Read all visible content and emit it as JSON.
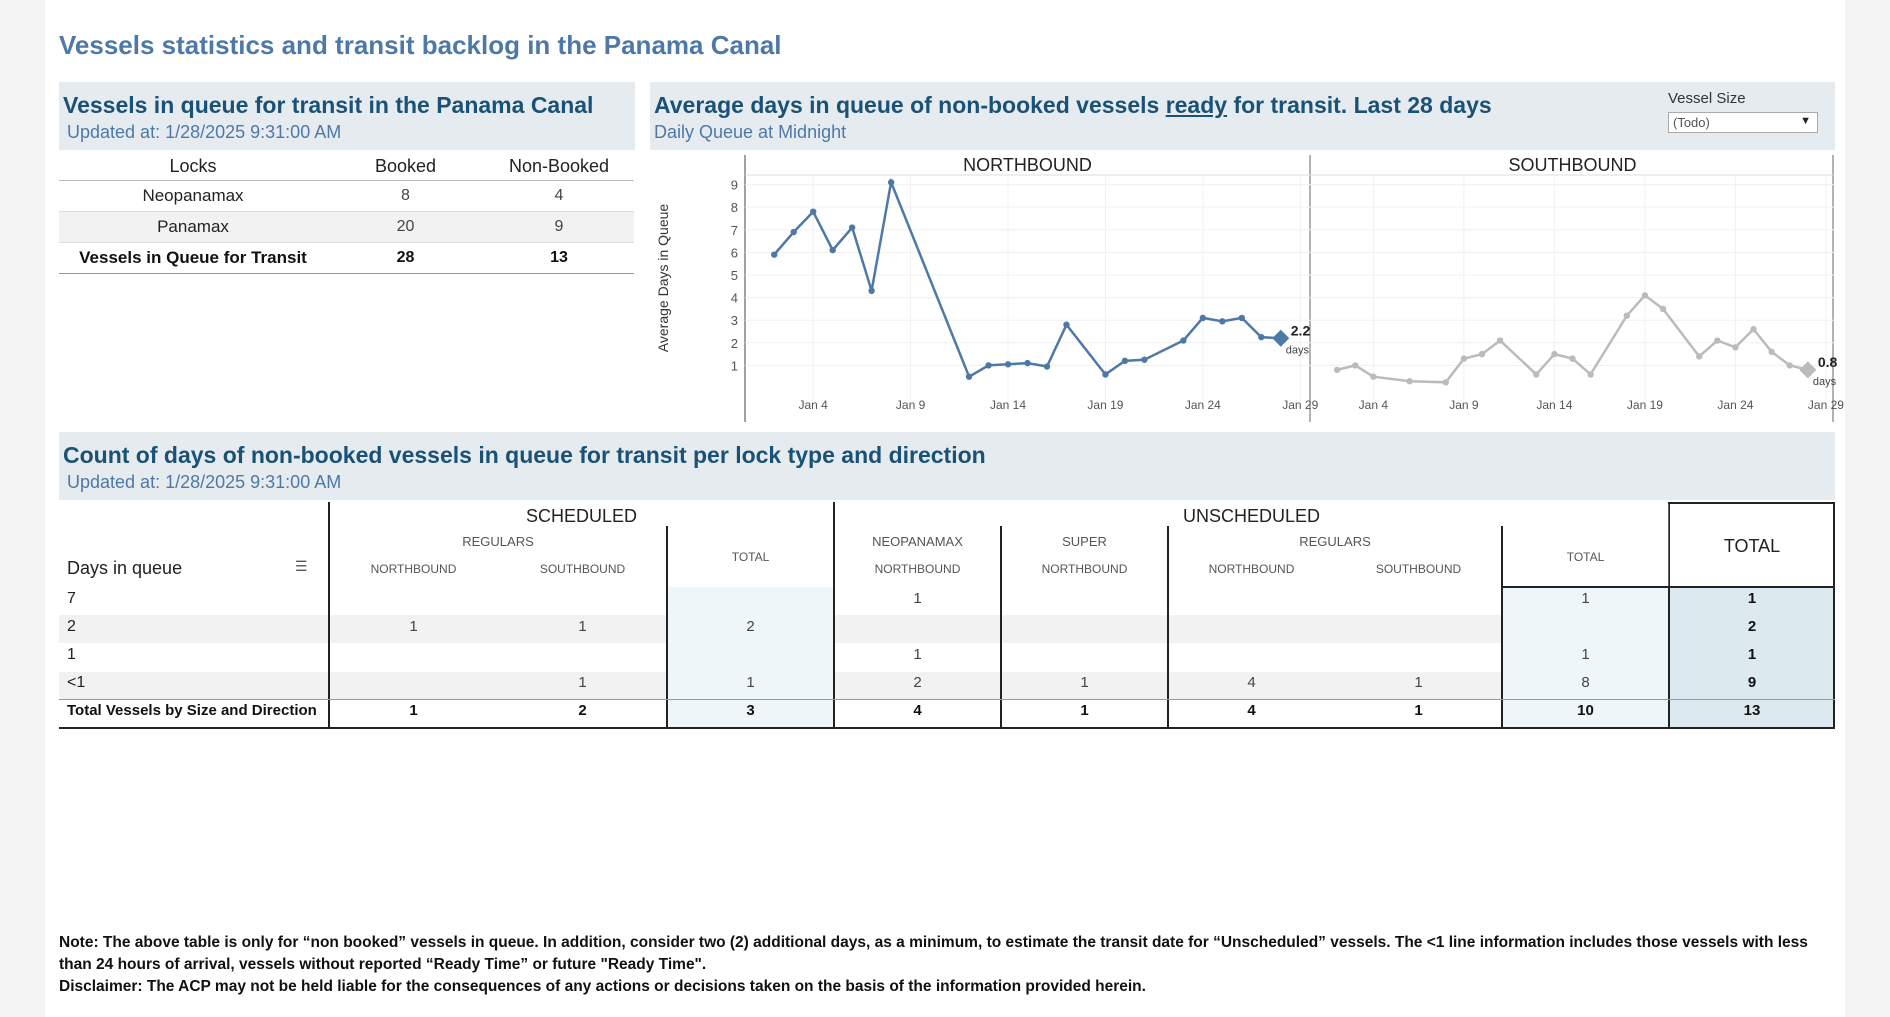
{
  "dashboard_title": "Vessels statistics and transit backlog in the Panama Canal",
  "queue_panel": {
    "title": "Vessels in queue for transit in the Panama Canal",
    "updated": "Updated at:  1/28/2025 9:31:00 AM",
    "columns": [
      "Locks",
      "Booked",
      "Non-Booked"
    ],
    "rows": [
      {
        "lock": "Neopanamax",
        "booked": "8",
        "non_booked": "4"
      },
      {
        "lock": "Panamax",
        "booked": "20",
        "non_booked": "9"
      },
      {
        "lock": "Vessels in Queue for Transit",
        "booked": "28",
        "non_booked": "13"
      }
    ]
  },
  "chart_panel": {
    "title_pre": "Average days in queue of non-booked vessels ",
    "title_ready": "ready",
    "title_post": " for transit. Last 28 days",
    "subtitle": "Daily Queue at Midnight",
    "filter_label": "Vessel Size",
    "filter_value": "(Todo)"
  },
  "chart_data": {
    "type": "line",
    "ylabel": "Average Days in Queue",
    "ylim": [
      0,
      9.5
    ],
    "y_ticks": [
      "1",
      "2",
      "3",
      "4",
      "5",
      "6",
      "7",
      "8",
      "9"
    ],
    "panels": [
      {
        "name": "NORTHBOUND",
        "color": "#4e79a7",
        "x_ticks": [
          "Jan 4",
          "Jan 9",
          "Jan 14",
          "Jan 19",
          "Jan 24",
          "Jan 29"
        ],
        "x_tick_days": [
          4,
          9,
          14,
          19,
          24,
          29
        ],
        "x_days": [
          2,
          3,
          4,
          5,
          6,
          7,
          8,
          12,
          13,
          14,
          15,
          16,
          17,
          19,
          20,
          21,
          23,
          24,
          25,
          26,
          27,
          28
        ],
        "values": [
          5.9,
          6.9,
          7.8,
          6.1,
          7.1,
          4.3,
          9.1,
          0.5,
          1.0,
          1.05,
          1.1,
          0.95,
          2.8,
          0.6,
          1.2,
          1.25,
          2.1,
          3.1,
          2.95,
          3.1,
          2.25,
          2.2
        ],
        "end_label": "2.2",
        "end_unit": "days"
      },
      {
        "name": "SOUTHBOUND",
        "color": "#bbbbbb",
        "x_ticks": [
          "Jan 4",
          "Jan 9",
          "Jan 14",
          "Jan 19",
          "Jan 24",
          "Jan 29"
        ],
        "x_tick_days": [
          4,
          9,
          14,
          19,
          24,
          29
        ],
        "x_days": [
          2,
          3,
          4,
          6,
          8,
          9,
          10,
          11,
          13,
          14,
          15,
          16,
          18,
          19,
          20,
          22,
          23,
          24,
          25,
          26,
          27,
          28
        ],
        "values": [
          0.8,
          1.0,
          0.5,
          0.3,
          0.25,
          1.3,
          1.5,
          2.1,
          0.6,
          1.5,
          1.3,
          0.6,
          3.2,
          4.1,
          3.5,
          1.4,
          2.1,
          1.8,
          2.6,
          1.6,
          1.0,
          0.8
        ],
        "end_label": "0.8",
        "end_unit": "days"
      }
    ]
  },
  "count_panel": {
    "title": "Count of days of non-booked vessels in queue for transit per lock type and direction",
    "updated": "Updated at:  1/28/2025 9:31:00 AM",
    "days_header": "Days in queue",
    "scheduled": "SCHEDULED",
    "unscheduled": "UNSCHEDULED",
    "total": "TOTAL",
    "total_small": "TOTAL",
    "regulars": "REGULARS",
    "neopanamax": "NEOPANAMAX",
    "super": "SUPER",
    "northbound": "NORTHBOUND",
    "southbound": "SOUTHBOUND",
    "rows": [
      {
        "label": "7",
        "s_nb": "",
        "s_sb": "",
        "s_tot": "",
        "neo_nb": "1",
        "sup_nb": "",
        "reg_nb": "",
        "reg_sb": "",
        "u_tot": "1",
        "total": "1"
      },
      {
        "label": "2",
        "s_nb": "1",
        "s_sb": "1",
        "s_tot": "2",
        "neo_nb": "",
        "sup_nb": "",
        "reg_nb": "",
        "reg_sb": "",
        "u_tot": "",
        "total": "2"
      },
      {
        "label": "1",
        "s_nb": "",
        "s_sb": "",
        "s_tot": "",
        "neo_nb": "1",
        "sup_nb": "",
        "reg_nb": "",
        "reg_sb": "",
        "u_tot": "1",
        "total": "1"
      },
      {
        "label": "<1",
        "s_nb": "",
        "s_sb": "1",
        "s_tot": "1",
        "neo_nb": "2",
        "sup_nb": "1",
        "reg_nb": "4",
        "reg_sb": "1",
        "u_tot": "8",
        "total": "9"
      }
    ],
    "totals_row": {
      "label": "Total Vessels by Size and Direction",
      "s_nb": "1",
      "s_sb": "2",
      "s_tot": "3",
      "neo_nb": "4",
      "sup_nb": "1",
      "reg_nb": "4",
      "reg_sb": "1",
      "u_tot": "10",
      "total": "13"
    }
  },
  "notes": {
    "note": "Note:  The above table is only for “non booked” vessels in queue. In addition, consider two (2) additional days, as a minimum, to estimate the transit date for “Unscheduled” vessels.  The <1 line information includes those vessels with less than 24 hours of arrival, vessels without reported “Ready Time” or future \"Ready Time\".",
    "disclaimer": "Disclaimer: The ACP may not be held liable for the consequences of any actions or decisions taken on the basis of the information provided herein."
  }
}
